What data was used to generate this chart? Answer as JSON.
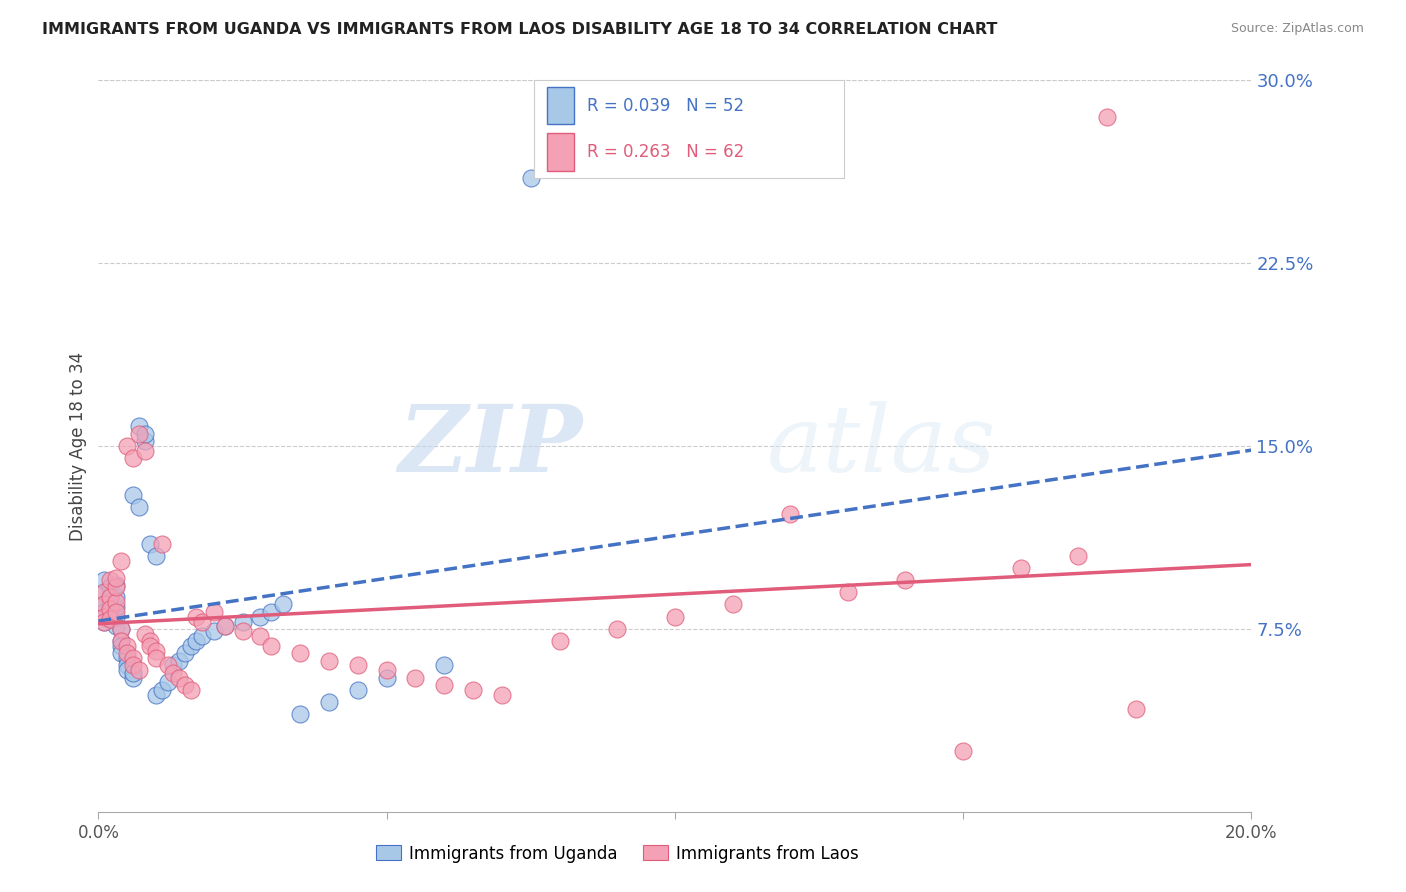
{
  "title": "IMMIGRANTS FROM UGANDA VS IMMIGRANTS FROM LAOS DISABILITY AGE 18 TO 34 CORRELATION CHART",
  "source": "Source: ZipAtlas.com",
  "ylabel": "Disability Age 18 to 34",
  "legend_r_uganda": "R = 0.039",
  "legend_n_uganda": "N = 52",
  "legend_r_laos": "R = 0.263",
  "legend_n_laos": "N = 62",
  "label_uganda": "Immigrants from Uganda",
  "label_laos": "Immigrants from Laos",
  "xlim": [
    0.0,
    0.2
  ],
  "ylim": [
    0.0,
    0.3
  ],
  "xticks": [
    0.0,
    0.05,
    0.1,
    0.15,
    0.2
  ],
  "xtick_labels": [
    "0.0%",
    "",
    "",
    "",
    "20.0%"
  ],
  "yticks_right": [
    0.075,
    0.15,
    0.225,
    0.3
  ],
  "ytick_labels_right": [
    "7.5%",
    "15.0%",
    "22.5%",
    "30.0%"
  ],
  "color_uganda": "#a8c8e8",
  "color_laos": "#f4a0b5",
  "trendline_uganda_color": "#4472c4",
  "trendline_laos_color": "#e05c7a",
  "watermark_zip": "ZIP",
  "watermark_atlas": "atlas",
  "uganda_x": [
    0.001,
    0.001,
    0.001,
    0.001,
    0.001,
    0.002,
    0.002,
    0.002,
    0.002,
    0.002,
    0.003,
    0.003,
    0.003,
    0.003,
    0.003,
    0.004,
    0.004,
    0.004,
    0.004,
    0.005,
    0.005,
    0.005,
    0.006,
    0.006,
    0.006,
    0.007,
    0.007,
    0.008,
    0.008,
    0.009,
    0.01,
    0.01,
    0.011,
    0.012,
    0.013,
    0.014,
    0.015,
    0.016,
    0.017,
    0.018,
    0.02,
    0.022,
    0.025,
    0.028,
    0.03,
    0.032,
    0.035,
    0.04,
    0.045,
    0.05,
    0.06,
    0.075
  ],
  "uganda_y": [
    0.09,
    0.085,
    0.082,
    0.078,
    0.095,
    0.088,
    0.083,
    0.079,
    0.092,
    0.086,
    0.076,
    0.08,
    0.084,
    0.088,
    0.093,
    0.075,
    0.07,
    0.068,
    0.065,
    0.063,
    0.06,
    0.058,
    0.055,
    0.057,
    0.13,
    0.125,
    0.158,
    0.152,
    0.155,
    0.11,
    0.105,
    0.048,
    0.05,
    0.053,
    0.06,
    0.062,
    0.065,
    0.068,
    0.07,
    0.072,
    0.074,
    0.076,
    0.078,
    0.08,
    0.082,
    0.085,
    0.04,
    0.045,
    0.05,
    0.055,
    0.06,
    0.26
  ],
  "laos_x": [
    0.001,
    0.001,
    0.001,
    0.001,
    0.002,
    0.002,
    0.002,
    0.002,
    0.003,
    0.003,
    0.003,
    0.003,
    0.004,
    0.004,
    0.004,
    0.005,
    0.005,
    0.005,
    0.006,
    0.006,
    0.006,
    0.007,
    0.007,
    0.008,
    0.008,
    0.009,
    0.009,
    0.01,
    0.01,
    0.011,
    0.012,
    0.013,
    0.014,
    0.015,
    0.016,
    0.017,
    0.018,
    0.02,
    0.022,
    0.025,
    0.028,
    0.03,
    0.035,
    0.04,
    0.045,
    0.05,
    0.055,
    0.06,
    0.065,
    0.07,
    0.08,
    0.09,
    0.1,
    0.11,
    0.12,
    0.13,
    0.14,
    0.15,
    0.16,
    0.17,
    0.175,
    0.18
  ],
  "laos_y": [
    0.09,
    0.085,
    0.08,
    0.078,
    0.088,
    0.083,
    0.079,
    0.095,
    0.086,
    0.082,
    0.092,
    0.096,
    0.075,
    0.07,
    0.103,
    0.068,
    0.065,
    0.15,
    0.145,
    0.063,
    0.06,
    0.058,
    0.155,
    0.148,
    0.073,
    0.07,
    0.068,
    0.066,
    0.063,
    0.11,
    0.06,
    0.057,
    0.055,
    0.052,
    0.05,
    0.08,
    0.078,
    0.082,
    0.076,
    0.074,
    0.072,
    0.068,
    0.065,
    0.062,
    0.06,
    0.058,
    0.055,
    0.052,
    0.05,
    0.048,
    0.07,
    0.075,
    0.08,
    0.085,
    0.122,
    0.09,
    0.095,
    0.025,
    0.1,
    0.105,
    0.285,
    0.042
  ]
}
